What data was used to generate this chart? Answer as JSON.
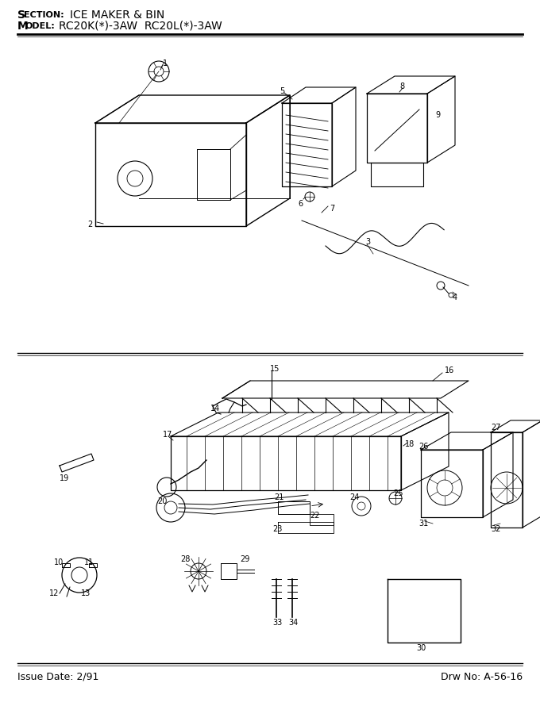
{
  "title_line1": "Sᴇᴄᴛɯᴏɴ:  ICE MAKER & BIN",
  "title_line1_plain": "SECTION:  ICE MAKER & BIN",
  "title_line2_plain": "MODEL:  RC20K(*)-3AW  RC20L(*)-3AW",
  "footer_left": "Issue Date: 2/91",
  "footer_right": "Drw No: A-56-16",
  "background_color": "#ffffff",
  "fig_width": 6.8,
  "fig_height": 8.9,
  "dpi": 100
}
